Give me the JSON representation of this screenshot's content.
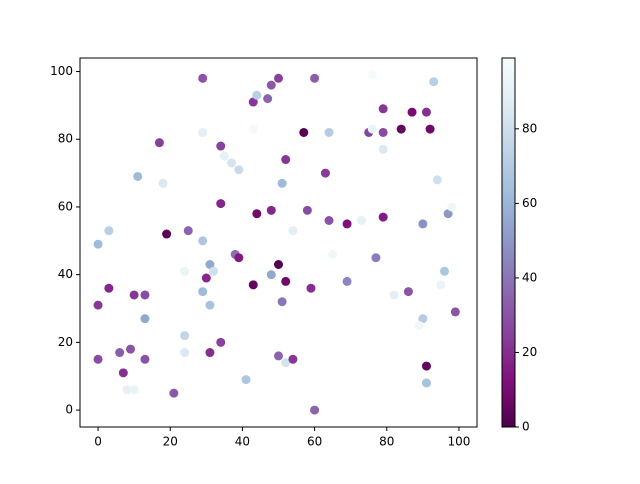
{
  "chart_data": {
    "type": "scatter",
    "x": [
      0,
      3,
      0,
      3,
      0,
      6,
      7,
      8,
      10,
      9,
      10,
      13,
      13,
      13,
      11,
      17,
      18,
      19,
      21,
      24,
      24,
      24,
      25,
      29,
      29,
      29,
      29,
      30,
      31,
      32,
      31,
      31,
      34,
      34,
      34,
      35,
      37,
      38,
      39,
      39,
      41,
      43,
      43,
      44,
      43,
      44,
      47,
      48,
      48,
      48,
      50,
      50,
      50,
      51,
      51,
      52,
      52,
      52,
      54,
      54,
      57,
      58,
      59,
      60,
      60,
      63,
      64,
      64,
      65,
      69,
      69,
      73,
      75,
      76,
      76,
      77,
      79,
      79,
      79,
      79,
      82,
      84,
      86,
      87,
      90,
      90,
      89,
      91,
      91,
      91,
      92,
      93,
      94,
      95,
      96,
      97,
      98,
      99
    ],
    "y": [
      49,
      53,
      31,
      36,
      15,
      17,
      11,
      6,
      6,
      18,
      34,
      34,
      27,
      15,
      69,
      79,
      67,
      52,
      5,
      41,
      22,
      17,
      53,
      98,
      82,
      50,
      35,
      39,
      43,
      41,
      31,
      17,
      78,
      61,
      20,
      75,
      73,
      46,
      45,
      71,
      9,
      91,
      83,
      93,
      37,
      58,
      92,
      96,
      40,
      59,
      98,
      43,
      16,
      67,
      32,
      74,
      38,
      14,
      15,
      53,
      82,
      59,
      36,
      98,
      0,
      70,
      82,
      56,
      46,
      55,
      38,
      56,
      82,
      99,
      83,
      45,
      89,
      82,
      77,
      57,
      34,
      83,
      35,
      88,
      55,
      27,
      25,
      88,
      13,
      8,
      83,
      97,
      68,
      37,
      41,
      58,
      60,
      29
    ],
    "c": [
      62,
      72,
      22,
      18,
      28,
      33,
      20,
      90,
      92,
      30,
      22,
      28,
      55,
      30,
      62,
      24,
      85,
      3,
      32,
      92,
      75,
      85,
      35,
      30,
      88,
      68,
      62,
      18,
      55,
      80,
      65,
      20,
      25,
      18,
      25,
      90,
      82,
      38,
      15,
      78,
      68,
      22,
      97,
      72,
      5,
      8,
      35,
      32,
      55,
      18,
      25,
      2,
      35,
      62,
      40,
      22,
      8,
      82,
      22,
      88,
      2,
      28,
      20,
      33,
      35,
      23,
      70,
      30,
      95,
      12,
      45,
      90,
      25,
      98,
      92,
      42,
      22,
      28,
      85,
      15,
      88,
      5,
      30,
      10,
      48,
      70,
      95,
      20,
      5,
      65,
      8,
      72,
      80,
      92,
      68,
      50,
      95,
      30
    ],
    "cmap_colors": [
      "#4d004b",
      "#810f7c",
      "#88419d",
      "#8c6bb1",
      "#8c96c6",
      "#9ebcda",
      "#bfd3e6",
      "#e0ecf4",
      "#f7fcfd"
    ],
    "clim": [
      0,
      99
    ],
    "cticks": [
      0,
      20,
      40,
      60,
      80
    ],
    "xlim": [
      -5,
      105
    ],
    "xticks": [
      0,
      20,
      40,
      60,
      80,
      100
    ],
    "ylim": [
      -5,
      104
    ],
    "yticks": [
      0,
      20,
      40,
      60,
      80,
      100
    ]
  }
}
